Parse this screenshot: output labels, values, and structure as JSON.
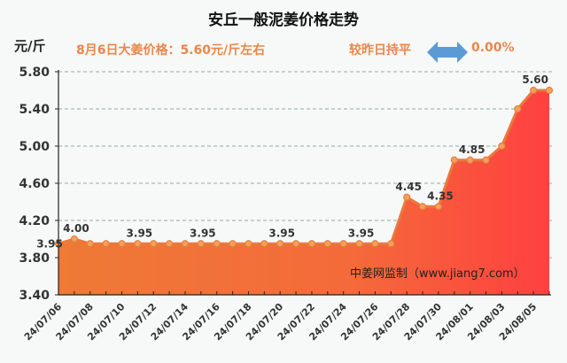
{
  "header": {
    "title": "安丘一般泥姜价格走势",
    "unit": "元/斤",
    "price_note": "8月6日大姜价格：5.60元/斤左右",
    "compare_text": "较昨日持平",
    "change_pct": "0.00%"
  },
  "watermark": "中姜网监制（www.jiang7.com）",
  "colors": {
    "accent_text": "#e8874a",
    "area_left": "#ee7a36",
    "area_right": "#ff4040",
    "line": "#e87a3c",
    "arrow": "#5b9bd5"
  },
  "chart_data": {
    "type": "area",
    "title": "安丘一般泥姜价格走势",
    "xlabel": "",
    "ylabel": "元/斤",
    "ylim": [
      3.4,
      5.8
    ],
    "yticks": [
      3.4,
      3.8,
      4.2,
      4.6,
      5.0,
      5.4,
      5.8
    ],
    "grid": true,
    "x": [
      "24/07/06",
      "24/07/07",
      "24/07/08",
      "24/07/09",
      "24/07/10",
      "24/07/11",
      "24/07/12",
      "24/07/13",
      "24/07/14",
      "24/07/15",
      "24/07/16",
      "24/07/17",
      "24/07/18",
      "24/07/19",
      "24/07/20",
      "24/07/21",
      "24/07/22",
      "24/07/23",
      "24/07/24",
      "24/07/25",
      "24/07/26",
      "24/07/27",
      "24/07/28",
      "24/07/29",
      "24/07/30",
      "24/07/31",
      "24/08/01",
      "24/08/02",
      "24/08/03",
      "24/08/04",
      "24/08/05",
      "24/08/06"
    ],
    "xtick_labels": [
      "24/07/06",
      "24/07/08",
      "24/07/10",
      "24/07/12",
      "24/07/14",
      "24/07/16",
      "24/07/18",
      "24/07/20",
      "24/07/22",
      "24/07/24",
      "24/07/26",
      "24/07/28",
      "24/07/30",
      "24/08/01",
      "24/08/03",
      "24/08/05"
    ],
    "values": [
      3.95,
      4.0,
      3.95,
      3.95,
      3.95,
      3.95,
      3.95,
      3.95,
      3.95,
      3.95,
      3.95,
      3.95,
      3.95,
      3.95,
      3.95,
      3.95,
      3.95,
      3.95,
      3.95,
      3.95,
      3.95,
      3.95,
      4.45,
      4.35,
      4.35,
      4.85,
      4.85,
      4.85,
      5.0,
      5.4,
      5.6,
      5.6
    ],
    "data_labels": [
      {
        "index": 0,
        "text": "3.95"
      },
      {
        "index": 1,
        "text": "4.00"
      },
      {
        "index": 5,
        "text": "3.95"
      },
      {
        "index": 9,
        "text": "3.95"
      },
      {
        "index": 14,
        "text": "3.95"
      },
      {
        "index": 19,
        "text": "3.95"
      },
      {
        "index": 22,
        "text": "4.45"
      },
      {
        "index": 24,
        "text": "4.35"
      },
      {
        "index": 26,
        "text": "4.85"
      },
      {
        "index": 30,
        "text": "5.60"
      }
    ]
  }
}
